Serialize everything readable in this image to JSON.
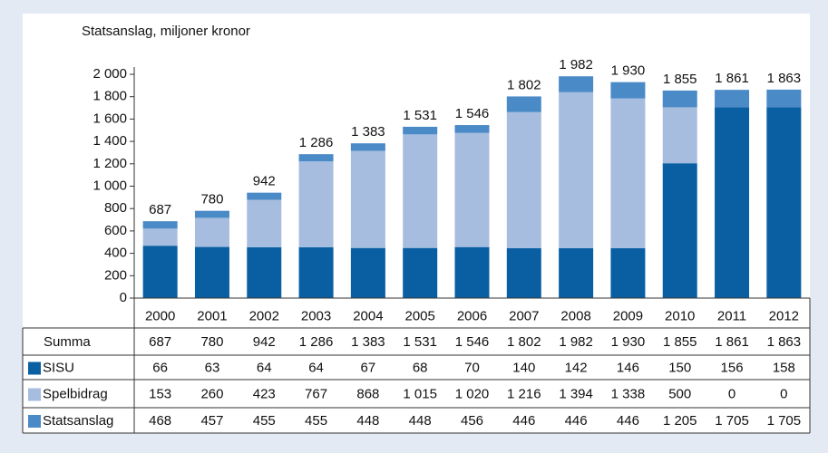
{
  "chart_data": {
    "type": "stacked_bar",
    "title": "Statsanslag, miljoner kronor",
    "categories": [
      "2000",
      "2001",
      "2002",
      "2003",
      "2004",
      "2005",
      "2006",
      "2007",
      "2008",
      "2009",
      "2010",
      "2011",
      "2012"
    ],
    "totals": {
      "name": "Summa",
      "values": [
        687,
        780,
        942,
        1286,
        1383,
        1531,
        1546,
        1802,
        1982,
        1930,
        1855,
        1861,
        1863
      ],
      "value_labels": [
        "687",
        "780",
        "942",
        "1 286",
        "1 383",
        "1 531",
        "1 546",
        "1 802",
        "1 982",
        "1 930",
        "1 855",
        "1 861",
        "1 863"
      ]
    },
    "series": [
      {
        "name": "SISU",
        "color": "#0a5fa3",
        "bar_color": "#4a8ac6",
        "values": [
          66,
          63,
          64,
          64,
          67,
          68,
          70,
          140,
          142,
          146,
          150,
          156,
          158
        ],
        "value_labels": [
          "66",
          "63",
          "64",
          "64",
          "67",
          "68",
          "70",
          "140",
          "142",
          "146",
          "150",
          "156",
          "158"
        ]
      },
      {
        "name": "Spelbidrag",
        "color": "#a7bde0",
        "bar_color": "#a7bde0",
        "values": [
          153,
          260,
          423,
          767,
          868,
          1015,
          1020,
          1216,
          1394,
          1338,
          500,
          0,
          0
        ],
        "value_labels": [
          "153",
          "260",
          "423",
          "767",
          "868",
          "1 015",
          "1 020",
          "1 216",
          "1 394",
          "1 338",
          "500",
          "0",
          "0"
        ]
      },
      {
        "name": "Statsanslag",
        "color": "#4a8ac6",
        "bar_color": "#0a5fa3",
        "values": [
          468,
          457,
          455,
          455,
          448,
          448,
          456,
          446,
          446,
          446,
          1205,
          1705,
          1705
        ],
        "value_labels": [
          "468",
          "457",
          "455",
          "455",
          "448",
          "448",
          "456",
          "446",
          "446",
          "446",
          "1 205",
          "1 705",
          "1 705"
        ]
      }
    ],
    "stack_order": [
      2,
      1,
      0
    ],
    "ylim": [
      0,
      2000
    ],
    "yticks": [
      0,
      200,
      400,
      600,
      800,
      {
        "value": 1000,
        "label": "1 000"
      },
      {
        "value": 1200,
        "label": "1 200"
      },
      {
        "value": 1400,
        "label": "1 400"
      },
      {
        "value": 1600,
        "label": "1 600"
      },
      {
        "value": 1800,
        "label": "1 800"
      },
      {
        "value": 2000,
        "label": "2 000"
      }
    ]
  }
}
